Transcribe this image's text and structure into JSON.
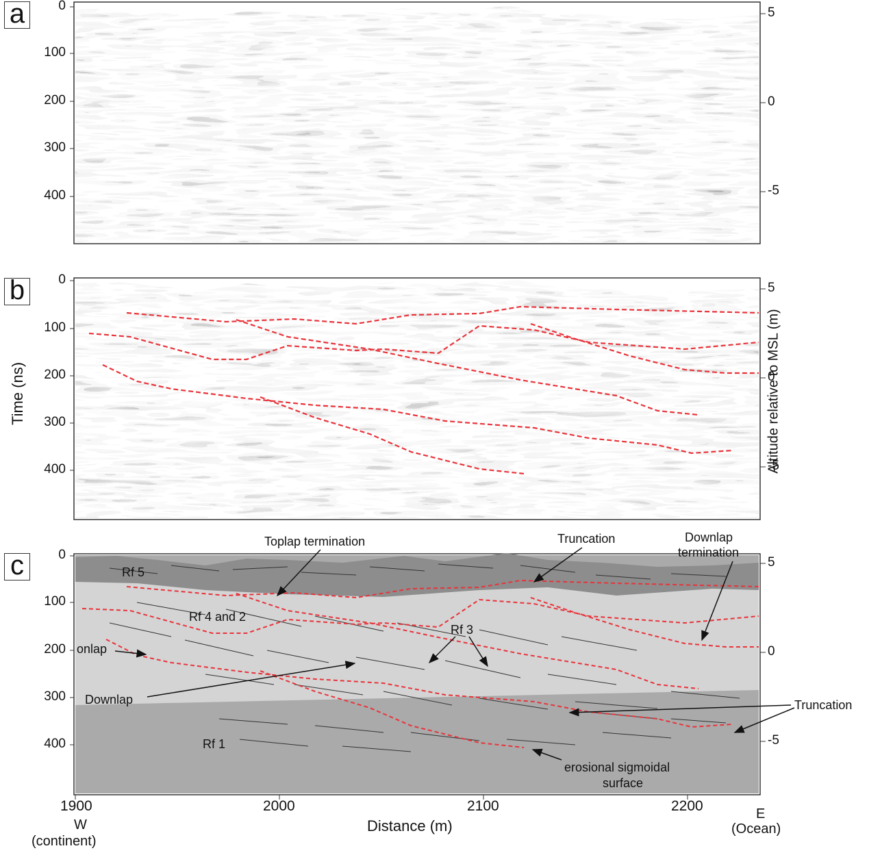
{
  "panels": {
    "a": "a",
    "b": "b",
    "c": "c"
  },
  "left_axis": {
    "title": "Time (ns)",
    "ticks": [
      "0",
      "100",
      "200",
      "300",
      "400"
    ]
  },
  "right_axis": {
    "title": "Altitude relative to MSL (m)",
    "ticks": [
      "5",
      "0",
      "-5"
    ]
  },
  "bottom_axis": {
    "title": "Distance (m)",
    "ticks": [
      "1900",
      "2000",
      "2100",
      "2200"
    ],
    "west": "W",
    "west_sub": "(continent)",
    "east": "E",
    "east_sub": "(Ocean)"
  },
  "annotations": {
    "toplap": "Toplap termination",
    "truncation_top": "Truncation",
    "downlap_term_1": "Downlap",
    "downlap_term_2": "termination",
    "rf5": "Rf 5",
    "rf42": "Rf 4 and 2",
    "rf3": "Rf 3",
    "onlap": "onlap",
    "downlap": "Downlap",
    "truncation_right": "Truncation",
    "rf1": "Rf 1",
    "erosional_1": "erosional sigmoidal",
    "erosional_2": "surface"
  },
  "colors": {
    "reflector": "#e8333a",
    "rf5_fill": "#8d8d8d",
    "rf42_fill": "#d4d4d4",
    "rf1_fill": "#aaaaaa"
  }
}
